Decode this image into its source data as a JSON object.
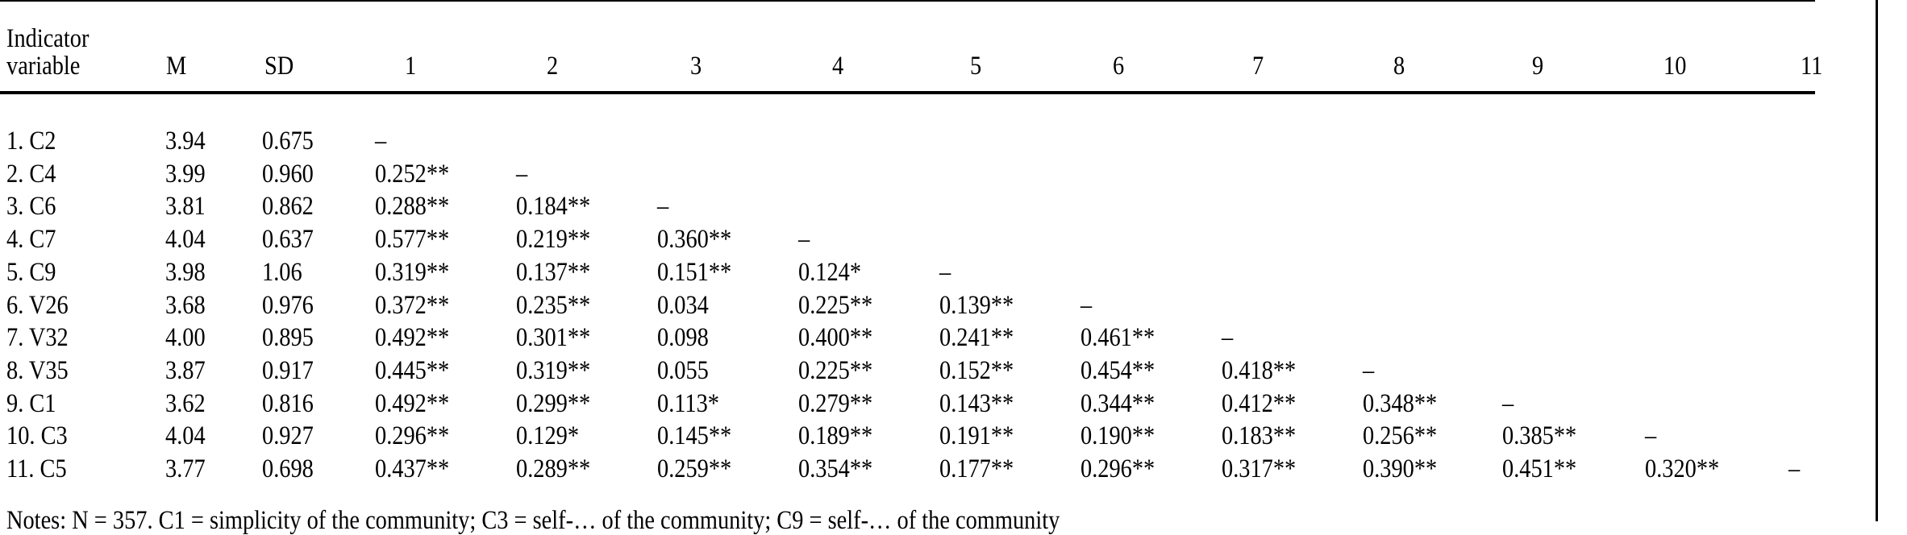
{
  "header": {
    "label_line1": "Indicator",
    "label_line2": "variable",
    "columns": [
      "M",
      "SD",
      "1",
      "2",
      "3",
      "4",
      "5",
      "6",
      "7",
      "8",
      "9",
      "10",
      "11"
    ]
  },
  "rows": [
    {
      "label": "1. C2",
      "m": "3.94",
      "sd": "0.675",
      "r": [
        "–"
      ]
    },
    {
      "label": "2. C4",
      "m": "3.99",
      "sd": "0.960",
      "r": [
        "0.252**",
        "–"
      ]
    },
    {
      "label": "3. C6",
      "m": "3.81",
      "sd": "0.862",
      "r": [
        "0.288**",
        "0.184**",
        "–"
      ]
    },
    {
      "label": "4. C7",
      "m": "4.04",
      "sd": "0.637",
      "r": [
        "0.577**",
        "0.219**",
        "0.360**",
        "–"
      ]
    },
    {
      "label": "5. C9",
      "m": "3.98",
      "sd": "1.06",
      "r": [
        "0.319**",
        "0.137**",
        "0.151**",
        "0.124*",
        "–"
      ]
    },
    {
      "label": "6. V26",
      "m": "3.68",
      "sd": "0.976",
      "r": [
        "0.372**",
        "0.235**",
        "0.034",
        "0.225**",
        "0.139**",
        "–"
      ]
    },
    {
      "label": "7. V32",
      "m": "4.00",
      "sd": "0.895",
      "r": [
        "0.492**",
        "0.301**",
        "0.098",
        "0.400**",
        "0.241**",
        "0.461**",
        "–"
      ]
    },
    {
      "label": "8. V35",
      "m": "3.87",
      "sd": "0.917",
      "r": [
        "0.445**",
        "0.319**",
        "0.055",
        "0.225**",
        "0.152**",
        "0.454**",
        "0.418**",
        "–"
      ]
    },
    {
      "label": "9. C1",
      "m": "3.62",
      "sd": "0.816",
      "r": [
        "0.492**",
        "0.299**",
        "0.113*",
        "0.279**",
        "0.143**",
        "0.344**",
        "0.412**",
        "0.348**",
        "–"
      ]
    },
    {
      "label": "10. C3",
      "m": "4.04",
      "sd": "0.927",
      "r": [
        "0.296**",
        "0.129*",
        "0.145**",
        "0.189**",
        "0.191**",
        "0.190**",
        "0.183**",
        "0.256**",
        "0.385**",
        "–"
      ]
    },
    {
      "label": "11. C5",
      "m": "3.77",
      "sd": "0.698",
      "r": [
        "0.437**",
        "0.289**",
        "0.259**",
        "0.354**",
        "0.177**",
        "0.296**",
        "0.317**",
        "0.390**",
        "0.451**",
        "0.320**",
        "–"
      ]
    }
  ],
  "notes": "Notes: N = 357. C1 = simplicity of the community; C3 = self-… of the community; C9 = self-… of the community"
}
